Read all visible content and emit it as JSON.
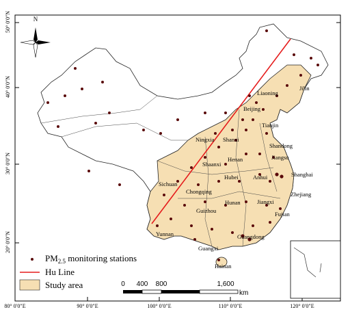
{
  "north_arrow": "N",
  "lat_labels": [
    "50° 0′0″N",
    "40° 0′0″N",
    "30° 0′0″N",
    "20° 0′0″N"
  ],
  "lon_labels": [
    "80° 0′0″E",
    "90° 0′0″E",
    "100° 0′0″E",
    "110° 0′0″E",
    "120° 0′0″E"
  ],
  "provinces": [
    "Jilin",
    "Liaoning",
    "Beijing",
    "Tianjin",
    "Ningxia",
    "Shanxi",
    "Shandong",
    "Henan",
    "Shaanxi",
    "Jiangsu",
    "Shanghai",
    "Anhui",
    "Hubei",
    "Sichuan",
    "Zhejiang",
    "Chongqing",
    "Hunan",
    "Jiangxi",
    "Fujian",
    "Guizhou",
    "Yunnan",
    "Guangdong",
    "Guangxi",
    "Hainan"
  ],
  "legend": {
    "stations": {
      "prefix": "PM",
      "subscript": "2.5",
      "suffix": " monitoring stations"
    },
    "hu_line": "Hu Line",
    "study_area": "Study area"
  },
  "scale_bar": {
    "ticks": [
      "0",
      "400",
      "800",
      "1,600"
    ],
    "unit": "km"
  }
}
